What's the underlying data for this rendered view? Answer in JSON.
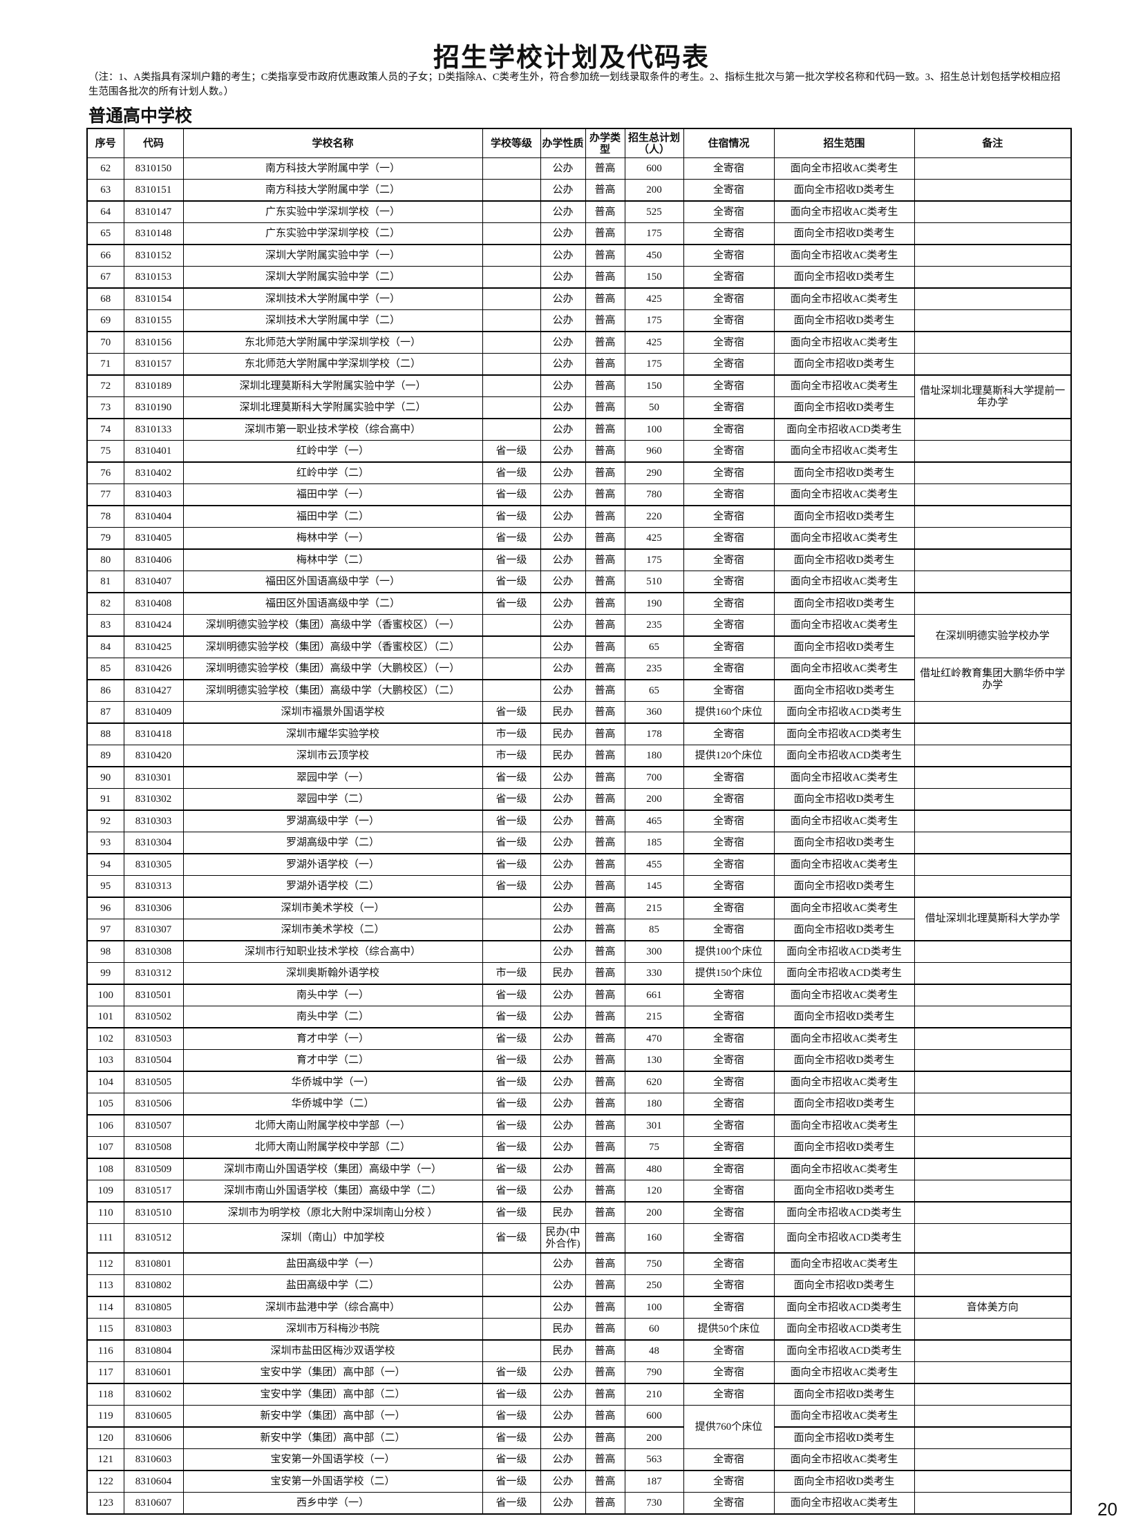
{
  "title": "招生学校计划及代码表",
  "note": "（注：1、A类指具有深圳户籍的考生；C类指享受市政府优惠政策人员的子女；D类指除A、C类考生外，符合参加统一划线录取条件的考生。2、指标生批次与第一批次学校名称和代码一致。3、招生总计划包括学校相应招生范围各批次的所有计划人数。）",
  "section": "普通高中学校",
  "page_number": "20",
  "table": {
    "headers": [
      "序号",
      "代码",
      "学校名称",
      "学校等级",
      "办学性质",
      "办学类型",
      "招生总计划（人）",
      "住宿情况",
      "招生范围",
      "备注"
    ],
    "rows": [
      [
        "62",
        "8310150",
        "南方科技大学附属中学（一）",
        "",
        "公办",
        "普高",
        "600",
        "全寄宿",
        "面向全市招收AC类考生",
        ""
      ],
      [
        "63",
        "8310151",
        "南方科技大学附属中学（二）",
        "",
        "公办",
        "普高",
        "200",
        "全寄宿",
        "面向全市招收D类考生",
        ""
      ],
      [
        "64",
        "8310147",
        "广东实验中学深圳学校（一）",
        "",
        "公办",
        "普高",
        "525",
        "全寄宿",
        "面向全市招收AC类考生",
        ""
      ],
      [
        "65",
        "8310148",
        "广东实验中学深圳学校（二）",
        "",
        "公办",
        "普高",
        "175",
        "全寄宿",
        "面向全市招收D类考生",
        ""
      ],
      [
        "66",
        "8310152",
        "深圳大学附属实验中学（一）",
        "",
        "公办",
        "普高",
        "450",
        "全寄宿",
        "面向全市招收AC类考生",
        ""
      ],
      [
        "67",
        "8310153",
        "深圳大学附属实验中学（二）",
        "",
        "公办",
        "普高",
        "150",
        "全寄宿",
        "面向全市招收D类考生",
        ""
      ],
      [
        "68",
        "8310154",
        "深圳技术大学附属中学（一）",
        "",
        "公办",
        "普高",
        "425",
        "全寄宿",
        "面向全市招收AC类考生",
        ""
      ],
      [
        "69",
        "8310155",
        "深圳技术大学附属中学（二）",
        "",
        "公办",
        "普高",
        "175",
        "全寄宿",
        "面向全市招收D类考生",
        ""
      ],
      [
        "70",
        "8310156",
        "东北师范大学附属中学深圳学校（一）",
        "",
        "公办",
        "普高",
        "425",
        "全寄宿",
        "面向全市招收AC类考生",
        ""
      ],
      [
        "71",
        "8310157",
        "东北师范大学附属中学深圳学校（二）",
        "",
        "公办",
        "普高",
        "175",
        "全寄宿",
        "面向全市招收D类考生",
        ""
      ],
      [
        "72",
        "8310189",
        "深圳北理莫斯科大学附属实验中学（一）",
        "",
        "公办",
        "普高",
        "150",
        "全寄宿",
        "面向全市招收AC类考生",
        "借址深圳北理莫斯科大学提前一年办学"
      ],
      [
        "73",
        "8310190",
        "深圳北理莫斯科大学附属实验中学（二）",
        "",
        "公办",
        "普高",
        "50",
        "全寄宿",
        "面向全市招收D类考生",
        null
      ],
      [
        "74",
        "8310133",
        "深圳市第一职业技术学校（综合高中）",
        "",
        "公办",
        "普高",
        "100",
        "全寄宿",
        "面向全市招收ACD类考生",
        ""
      ],
      [
        "75",
        "8310401",
        "红岭中学（一）",
        "省一级",
        "公办",
        "普高",
        "960",
        "全寄宿",
        "面向全市招收AC类考生",
        ""
      ],
      [
        "76",
        "8310402",
        "红岭中学（二）",
        "省一级",
        "公办",
        "普高",
        "290",
        "全寄宿",
        "面向全市招收D类考生",
        ""
      ],
      [
        "77",
        "8310403",
        "福田中学（一）",
        "省一级",
        "公办",
        "普高",
        "780",
        "全寄宿",
        "面向全市招收AC类考生",
        ""
      ],
      [
        "78",
        "8310404",
        "福田中学（二）",
        "省一级",
        "公办",
        "普高",
        "220",
        "全寄宿",
        "面向全市招收D类考生",
        ""
      ],
      [
        "79",
        "8310405",
        "梅林中学（一）",
        "省一级",
        "公办",
        "普高",
        "425",
        "全寄宿",
        "面向全市招收AC类考生",
        ""
      ],
      [
        "80",
        "8310406",
        "梅林中学（二）",
        "省一级",
        "公办",
        "普高",
        "175",
        "全寄宿",
        "面向全市招收D类考生",
        ""
      ],
      [
        "81",
        "8310407",
        "福田区外国语高级中学（一）",
        "省一级",
        "公办",
        "普高",
        "510",
        "全寄宿",
        "面向全市招收AC类考生",
        ""
      ],
      [
        "82",
        "8310408",
        "福田区外国语高级中学（二）",
        "省一级",
        "公办",
        "普高",
        "190",
        "全寄宿",
        "面向全市招收D类考生",
        ""
      ],
      [
        "83",
        "8310424",
        "深圳明德实验学校（集团）高级中学（香蜜校区）（一）",
        "",
        "公办",
        "普高",
        "235",
        "全寄宿",
        "面向全市招收AC类考生",
        "在深圳明德实验学校办学"
      ],
      [
        "84",
        "8310425",
        "深圳明德实验学校（集团）高级中学（香蜜校区）（二）",
        "",
        "公办",
        "普高",
        "65",
        "全寄宿",
        "面向全市招收D类考生",
        null
      ],
      [
        "85",
        "8310426",
        "深圳明德实验学校（集团）高级中学（大鹏校区）（一）",
        "",
        "公办",
        "普高",
        "235",
        "全寄宿",
        "面向全市招收AC类考生",
        "借址红岭教育集团大鹏华侨中学办学"
      ],
      [
        "86",
        "8310427",
        "深圳明德实验学校（集团）高级中学（大鹏校区）（二）",
        "",
        "公办",
        "普高",
        "65",
        "全寄宿",
        "面向全市招收D类考生",
        null
      ],
      [
        "87",
        "8310409",
        "深圳市福景外国语学校",
        "省一级",
        "民办",
        "普高",
        "360",
        "提供160个床位",
        "面向全市招收ACD类考生",
        ""
      ],
      [
        "88",
        "8310418",
        "深圳市耀华实验学校",
        "市一级",
        "民办",
        "普高",
        "178",
        "全寄宿",
        "面向全市招收ACD类考生",
        ""
      ],
      [
        "89",
        "8310420",
        "深圳市云顶学校",
        "市一级",
        "民办",
        "普高",
        "180",
        "提供120个床位",
        "面向全市招收ACD类考生",
        ""
      ],
      [
        "90",
        "8310301",
        "翠园中学（一）",
        "省一级",
        "公办",
        "普高",
        "700",
        "全寄宿",
        "面向全市招收AC类考生",
        ""
      ],
      [
        "91",
        "8310302",
        "翠园中学（二）",
        "省一级",
        "公办",
        "普高",
        "200",
        "全寄宿",
        "面向全市招收D类考生",
        ""
      ],
      [
        "92",
        "8310303",
        "罗湖高级中学（一）",
        "省一级",
        "公办",
        "普高",
        "465",
        "全寄宿",
        "面向全市招收AC类考生",
        ""
      ],
      [
        "93",
        "8310304",
        "罗湖高级中学（二）",
        "省一级",
        "公办",
        "普高",
        "185",
        "全寄宿",
        "面向全市招收D类考生",
        ""
      ],
      [
        "94",
        "8310305",
        "罗湖外语学校（一）",
        "省一级",
        "公办",
        "普高",
        "455",
        "全寄宿",
        "面向全市招收AC类考生",
        ""
      ],
      [
        "95",
        "8310313",
        "罗湖外语学校（二）",
        "省一级",
        "公办",
        "普高",
        "145",
        "全寄宿",
        "面向全市招收D类考生",
        ""
      ],
      [
        "96",
        "8310306",
        "深圳市美术学校（一）",
        "",
        "公办",
        "普高",
        "215",
        "全寄宿",
        "面向全市招收AC类考生",
        "借址深圳北理莫斯科大学办学"
      ],
      [
        "97",
        "8310307",
        "深圳市美术学校（二）",
        "",
        "公办",
        "普高",
        "85",
        "全寄宿",
        "面向全市招收D类考生",
        null
      ],
      [
        "98",
        "8310308",
        "深圳市行知职业技术学校（综合高中）",
        "",
        "公办",
        "普高",
        "300",
        "提供100个床位",
        "面向全市招收ACD类考生",
        ""
      ],
      [
        "99",
        "8310312",
        "深圳奥斯翰外语学校",
        "市一级",
        "民办",
        "普高",
        "330",
        "提供150个床位",
        "面向全市招收ACD类考生",
        ""
      ],
      [
        "100",
        "8310501",
        "南头中学（一）",
        "省一级",
        "公办",
        "普高",
        "661",
        "全寄宿",
        "面向全市招收AC类考生",
        ""
      ],
      [
        "101",
        "8310502",
        "南头中学（二）",
        "省一级",
        "公办",
        "普高",
        "215",
        "全寄宿",
        "面向全市招收D类考生",
        ""
      ],
      [
        "102",
        "8310503",
        "育才中学（一）",
        "省一级",
        "公办",
        "普高",
        "470",
        "全寄宿",
        "面向全市招收AC类考生",
        ""
      ],
      [
        "103",
        "8310504",
        "育才中学（二）",
        "省一级",
        "公办",
        "普高",
        "130",
        "全寄宿",
        "面向全市招收D类考生",
        ""
      ],
      [
        "104",
        "8310505",
        "华侨城中学（一）",
        "省一级",
        "公办",
        "普高",
        "620",
        "全寄宿",
        "面向全市招收AC类考生",
        ""
      ],
      [
        "105",
        "8310506",
        "华侨城中学（二）",
        "省一级",
        "公办",
        "普高",
        "180",
        "全寄宿",
        "面向全市招收D类考生",
        ""
      ],
      [
        "106",
        "8310507",
        "北师大南山附属学校中学部（一）",
        "省一级",
        "公办",
        "普高",
        "301",
        "全寄宿",
        "面向全市招收AC类考生",
        ""
      ],
      [
        "107",
        "8310508",
        "北师大南山附属学校中学部（二）",
        "省一级",
        "公办",
        "普高",
        "75",
        "全寄宿",
        "面向全市招收D类考生",
        ""
      ],
      [
        "108",
        "8310509",
        "深圳市南山外国语学校（集团）高级中学（一）",
        "省一级",
        "公办",
        "普高",
        "480",
        "全寄宿",
        "面向全市招收AC类考生",
        ""
      ],
      [
        "109",
        "8310517",
        "深圳市南山外国语学校（集团）高级中学（二）",
        "省一级",
        "公办",
        "普高",
        "120",
        "全寄宿",
        "面向全市招收D类考生",
        ""
      ],
      [
        "110",
        "8310510",
        "深圳市为明学校（原北大附中深圳南山分校 ）",
        "省一级",
        "民办",
        "普高",
        "200",
        "全寄宿",
        "面向全市招收ACD类考生",
        ""
      ],
      [
        "111",
        "8310512",
        "深圳（南山）中加学校",
        "省一级",
        "民办(中外合作)",
        "普高",
        "160",
        "全寄宿",
        "面向全市招收ACD类考生",
        ""
      ],
      [
        "112",
        "8310801",
        "盐田高级中学（一）",
        "",
        "公办",
        "普高",
        "750",
        "全寄宿",
        "面向全市招收AC类考生",
        ""
      ],
      [
        "113",
        "8310802",
        "盐田高级中学（二）",
        "",
        "公办",
        "普高",
        "250",
        "全寄宿",
        "面向全市招收D类考生",
        ""
      ],
      [
        "114",
        "8310805",
        "深圳市盐港中学（综合高中）",
        "",
        "公办",
        "普高",
        "100",
        "全寄宿",
        "面向全市招收ACD类考生",
        "音体美方向"
      ],
      [
        "115",
        "8310803",
        "深圳市万科梅沙书院",
        "",
        "民办",
        "普高",
        "60",
        "提供50个床位",
        "面向全市招收ACD类考生",
        ""
      ],
      [
        "116",
        "8310804",
        "深圳市盐田区梅沙双语学校",
        "",
        "民办",
        "普高",
        "48",
        "全寄宿",
        "面向全市招收ACD类考生",
        ""
      ],
      [
        "117",
        "8310601",
        "宝安中学（集团）高中部（一）",
        "省一级",
        "公办",
        "普高",
        "790",
        "全寄宿",
        "面向全市招收AC类考生",
        ""
      ],
      [
        "118",
        "8310602",
        "宝安中学（集团）高中部（二）",
        "省一级",
        "公办",
        "普高",
        "210",
        "全寄宿",
        "面向全市招收D类考生",
        ""
      ],
      [
        "119",
        "8310605",
        "新安中学（集团）高中部（一）",
        "省一级",
        "公办",
        "普高",
        "600",
        "提供760个床位",
        "面向全市招收AC类考生",
        ""
      ],
      [
        "120",
        "8310606",
        "新安中学（集团）高中部（二）",
        "省一级",
        "公办",
        "普高",
        "200",
        null,
        "面向全市招收D类考生",
        ""
      ],
      [
        "121",
        "8310603",
        "宝安第一外国语学校（一）",
        "省一级",
        "公办",
        "普高",
        "563",
        "全寄宿",
        "面向全市招收AC类考生",
        ""
      ],
      [
        "122",
        "8310604",
        "宝安第一外国语学校（二）",
        "省一级",
        "公办",
        "普高",
        "187",
        "全寄宿",
        "面向全市招收D类考生",
        ""
      ],
      [
        "123",
        "8310607",
        "西乡中学（一）",
        "省一级",
        "公办",
        "普高",
        "730",
        "全寄宿",
        "面向全市招收AC类考生",
        ""
      ]
    ]
  }
}
